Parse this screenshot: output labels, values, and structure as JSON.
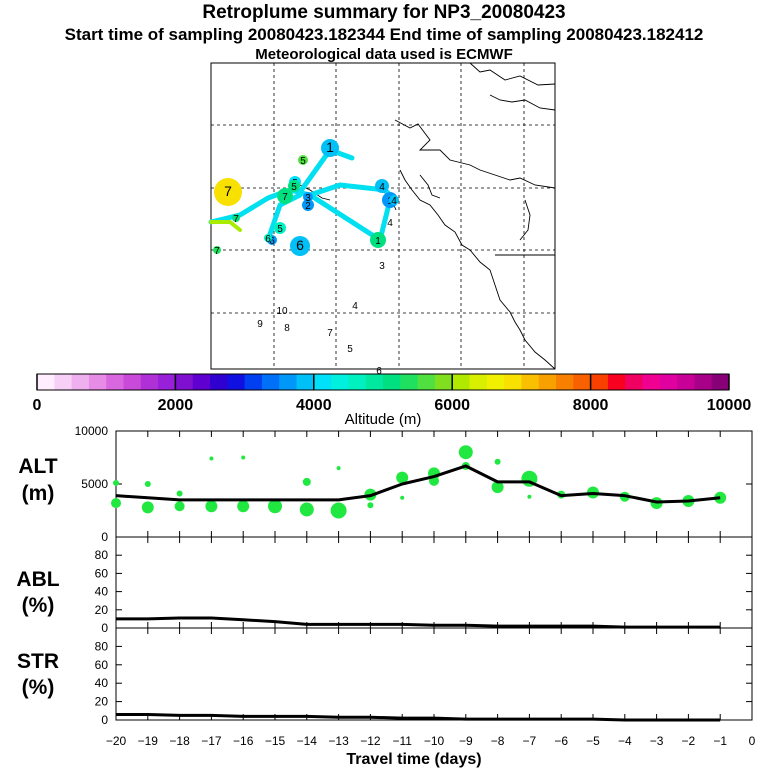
{
  "header": {
    "title": "Retroplume summary for NP3_20080423",
    "subtitle_start": "Start time of sampling 20080423.182344     End time of sampling 20080423.182412",
    "subtitle_met": "Meteorological data used is ECMWF"
  },
  "colorbar": {
    "label": "Altitude (m)",
    "ticks": [
      "0",
      "2000",
      "4000",
      "6000",
      "8000",
      "10000"
    ],
    "colors": [
      "#ffeeff",
      "#f7d0f7",
      "#efb0ef",
      "#e68be6",
      "#d968e0",
      "#c94ad8",
      "#b030d8",
      "#9820d8",
      "#8010d0",
      "#6000d0",
      "#3000d0",
      "#1010e0",
      "#0040f0",
      "#0070f8",
      "#0098f8",
      "#00c0f8",
      "#00e0f8",
      "#00f0e0",
      "#00f0c0",
      "#00e8a0",
      "#00e080",
      "#20e060",
      "#50e040",
      "#80e020",
      "#b0e800",
      "#d8f000",
      "#f0f000",
      "#f8e000",
      "#f8c000",
      "#f8a000",
      "#f88000",
      "#f86000",
      "#f84000",
      "#f80020",
      "#f00060",
      "#f00090",
      "#e000a0",
      "#c80098",
      "#a80088",
      "#880078"
    ]
  },
  "map": {
    "altitude_dots": [
      {
        "label": "1",
        "alt": 3800
      },
      {
        "label": "1",
        "alt": 3700
      },
      {
        "label": "2",
        "alt": 3600
      },
      {
        "label": "3",
        "alt": 3500
      },
      {
        "label": "4",
        "alt": 3900
      },
      {
        "label": "4",
        "alt": 3900
      },
      {
        "label": "5",
        "alt": 4200
      },
      {
        "label": "5",
        "alt": 5500
      },
      {
        "label": "6",
        "alt": 3700
      },
      {
        "label": "6",
        "alt": 3800
      },
      {
        "label": "7",
        "alt": 6800
      },
      {
        "label": "7",
        "alt": 5000
      },
      {
        "label": "5",
        "alt": 5200
      },
      {
        "label": "5",
        "alt": 4500
      },
      {
        "label": "6",
        "alt": 4600
      },
      {
        "label": "7",
        "alt": 5300
      },
      {
        "label": "7",
        "alt": 5100
      },
      {
        "label": "1",
        "alt": 5000
      },
      {
        "label": "4",
        "alt": 0
      },
      {
        "label": "3",
        "alt": 0
      },
      {
        "label": "4",
        "alt": 0
      },
      {
        "label": "10",
        "alt": 0
      },
      {
        "label": "9",
        "alt": 0
      },
      {
        "label": "8",
        "alt": 0
      },
      {
        "label": "7",
        "alt": 0
      },
      {
        "label": "5",
        "alt": 0
      },
      {
        "label": "6",
        "alt": 0
      }
    ]
  },
  "chart_data": [
    {
      "type": "line",
      "panel_label": "ALT\n(m)",
      "label_line1": "ALT",
      "label_line2": "(m)",
      "ylim": [
        0,
        10000
      ],
      "yticks": [
        "10000",
        "5000",
        "0"
      ],
      "x": [
        -20,
        -19,
        -18,
        -17,
        -16,
        -15,
        -14,
        -13,
        -12,
        -11,
        -10,
        -9,
        -8,
        -7,
        -6,
        -5,
        -4,
        -3,
        -2,
        -1
      ],
      "values": [
        3900,
        3700,
        3500,
        3500,
        3500,
        3500,
        3500,
        3500,
        3900,
        5000,
        5700,
        6700,
        5200,
        5200,
        3900,
        4100,
        3900,
        3300,
        3400,
        3700
      ],
      "scatter": [
        {
          "x": -20,
          "y": 5100,
          "s": 3
        },
        {
          "x": -20,
          "y": 3200,
          "s": 5
        },
        {
          "x": -19,
          "y": 5000,
          "s": 3
        },
        {
          "x": -19,
          "y": 2800,
          "s": 6
        },
        {
          "x": -18,
          "y": 4100,
          "s": 3
        },
        {
          "x": -18,
          "y": 2900,
          "s": 5
        },
        {
          "x": -17,
          "y": 7400,
          "s": 2
        },
        {
          "x": -17,
          "y": 2900,
          "s": 6
        },
        {
          "x": -16,
          "y": 7500,
          "s": 2
        },
        {
          "x": -16,
          "y": 2900,
          "s": 6
        },
        {
          "x": -15,
          "y": 2900,
          "s": 7
        },
        {
          "x": -14,
          "y": 5200,
          "s": 4
        },
        {
          "x": -14,
          "y": 2600,
          "s": 7
        },
        {
          "x": -13,
          "y": 6500,
          "s": 2
        },
        {
          "x": -13,
          "y": 2500,
          "s": 8
        },
        {
          "x": -12,
          "y": 3000,
          "s": 3
        },
        {
          "x": -12,
          "y": 4000,
          "s": 6
        },
        {
          "x": -11,
          "y": 5600,
          "s": 6
        },
        {
          "x": -11,
          "y": 3700,
          "s": 2
        },
        {
          "x": -10,
          "y": 6000,
          "s": 6
        },
        {
          "x": -10,
          "y": 5300,
          "s": 5
        },
        {
          "x": -9,
          "y": 8000,
          "s": 7
        },
        {
          "x": -9,
          "y": 6700,
          "s": 4
        },
        {
          "x": -8,
          "y": 7100,
          "s": 3
        },
        {
          "x": -8,
          "y": 4700,
          "s": 6
        },
        {
          "x": -7,
          "y": 5500,
          "s": 8
        },
        {
          "x": -7,
          "y": 3800,
          "s": 2
        },
        {
          "x": -6,
          "y": 4000,
          "s": 4
        },
        {
          "x": -5,
          "y": 4200,
          "s": 6
        },
        {
          "x": -4,
          "y": 3800,
          "s": 5
        },
        {
          "x": -3,
          "y": 3200,
          "s": 6
        },
        {
          "x": -2,
          "y": 3400,
          "s": 6
        },
        {
          "x": -1,
          "y": 3700,
          "s": 6
        }
      ]
    },
    {
      "type": "line",
      "panel_label": "ABL\n(%)",
      "label_line1": "ABL",
      "label_line2": "(%)",
      "ylim": [
        0,
        100
      ],
      "yticks": [
        "80",
        "60",
        "40",
        "20",
        "0"
      ],
      "x": [
        -20,
        -19,
        -18,
        -17,
        -16,
        -15,
        -14,
        -13,
        -12,
        -11,
        -10,
        -9,
        -8,
        -7,
        -6,
        -5,
        -4,
        -3,
        -2,
        -1
      ],
      "values": [
        10,
        10,
        11,
        11,
        9,
        7,
        4,
        4,
        4,
        4,
        3,
        3,
        2,
        2,
        2,
        2,
        1,
        1,
        1,
        1
      ]
    },
    {
      "type": "line",
      "panel_label": "STR\n(%)",
      "label_line1": "STR",
      "label_line2": "(%)",
      "ylim": [
        0,
        100
      ],
      "yticks": [
        "80",
        "60",
        "40",
        "20",
        "0"
      ],
      "x": [
        -20,
        -19,
        -18,
        -17,
        -16,
        -15,
        -14,
        -13,
        -12,
        -11,
        -10,
        -9,
        -8,
        -7,
        -6,
        -5,
        -4,
        -3,
        -2,
        -1
      ],
      "values": [
        6,
        6,
        5,
        5,
        4,
        4,
        4,
        3,
        3,
        2,
        2,
        1,
        1,
        1,
        1,
        1,
        0,
        0,
        0,
        0
      ]
    }
  ],
  "xaxis": {
    "title": "Travel time (days)",
    "tick_labels": [
      "−20",
      "−19",
      "−18",
      "−17",
      "−16",
      "−15",
      "−14",
      "−13",
      "−12",
      "−11",
      "−10",
      "−9",
      "−8",
      "−7",
      "−6",
      "−5",
      "−4",
      "−3",
      "−2",
      "−1",
      "0"
    ],
    "range": [
      -20,
      0
    ]
  },
  "colors": {
    "trajectory": "#00e0f0",
    "trajectory_alt": "#a8ec00",
    "scatter": "#20e840",
    "line": "#000000"
  }
}
